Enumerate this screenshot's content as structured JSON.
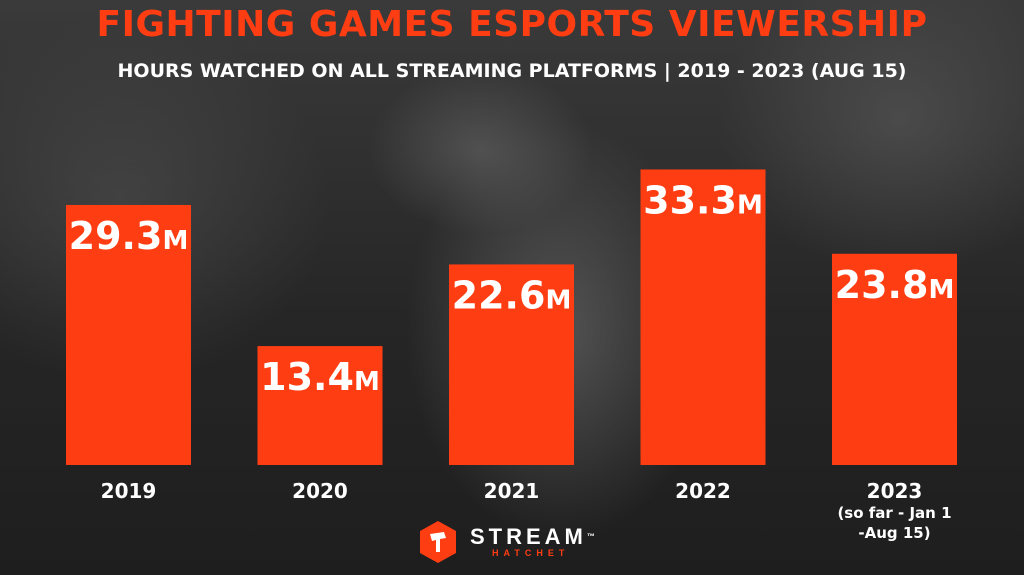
{
  "title": "FIGHTING GAMES ESPORTS VIEWERSHIP",
  "subtitle": "HOURS WATCHED ON ALL STREAMING PLATFORMS | 2019 - 2023 (AUG 15)",
  "brand": {
    "main": "STREAM",
    "tm": "™",
    "sub": "HATCHET",
    "logo_icon": "hatchet-logo-icon"
  },
  "colors": {
    "bar": "#ff3d12",
    "title": "#ff3d12",
    "text": "#ffffff"
  },
  "chart_data": {
    "type": "bar",
    "title": "FIGHTING GAMES ESPORTS VIEWERSHIP",
    "subtitle": "HOURS WATCHED ON ALL STREAMING PLATFORMS | 2019 - 2023 (AUG 15)",
    "unit": "M",
    "categories": [
      "2019",
      "2020",
      "2021",
      "2022",
      "2023"
    ],
    "category_notes": [
      "",
      "",
      "",
      "",
      "(so far - Jan 1 -Aug 15)"
    ],
    "values": [
      29.3,
      13.4,
      22.6,
      33.3,
      23.8
    ],
    "value_labels": [
      "29.3",
      "13.4",
      "22.6",
      "33.3",
      "23.8"
    ],
    "ylim": [
      0,
      40
    ],
    "grid": false
  }
}
